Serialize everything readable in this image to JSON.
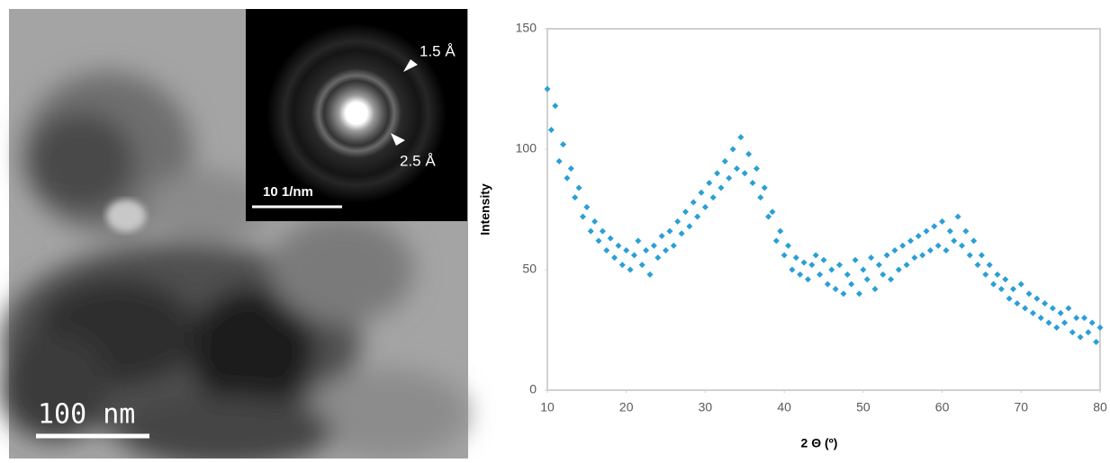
{
  "image_labels": {
    "scale_bar": "100 nm",
    "inset_scale_bar": "10 1/nm",
    "ring_outer": "1.5 Å",
    "ring_inner": "2.5 Å"
  },
  "chart_data": {
    "type": "scatter",
    "x_label": "2 Θ (º)",
    "y_label": "Intensity",
    "color": "#2a9fd6",
    "xlim": [
      10,
      80
    ],
    "xticks": [
      10,
      20,
      30,
      40,
      50,
      60,
      70,
      80
    ],
    "ylim": [
      0,
      150
    ],
    "yticks": [
      0,
      50,
      100,
      150
    ],
    "x": [
      10,
      10.5,
      11,
      11.5,
      12,
      12.5,
      13,
      13.5,
      14,
      14.5,
      15,
      15.5,
      16,
      16.5,
      17,
      17.5,
      18,
      18.5,
      19,
      19.5,
      20,
      20.5,
      21,
      21.5,
      22,
      22.5,
      23,
      23.5,
      24,
      24.5,
      25,
      25.5,
      26,
      26.5,
      27,
      27.5,
      28,
      28.5,
      29,
      29.5,
      30,
      30.5,
      31,
      31.5,
      32,
      32.5,
      33,
      33.5,
      34,
      34.5,
      35,
      35.5,
      36,
      36.5,
      37,
      37.5,
      38,
      38.5,
      39,
      39.5,
      40,
      40.5,
      41,
      41.5,
      42,
      42.5,
      43,
      43.5,
      44,
      44.5,
      45,
      45.5,
      46,
      46.5,
      47,
      47.5,
      48,
      48.5,
      49,
      49.5,
      50,
      50.5,
      51,
      51.5,
      52,
      52.5,
      53,
      53.5,
      54,
      54.5,
      55,
      55.5,
      56,
      56.5,
      57,
      57.5,
      58,
      58.5,
      59,
      59.5,
      60,
      60.5,
      61,
      61.5,
      62,
      62.5,
      63,
      63.5,
      64,
      64.5,
      65,
      65.5,
      66,
      66.5,
      67,
      67.5,
      68,
      68.5,
      69,
      69.5,
      70,
      70.5,
      71,
      71.5,
      72,
      72.5,
      73,
      73.5,
      74,
      74.5,
      75,
      75.5,
      76,
      76.5,
      77,
      77.5,
      78,
      78.5,
      79,
      79.5,
      80
    ],
    "values": [
      125,
      108,
      118,
      95,
      102,
      88,
      92,
      80,
      84,
      72,
      76,
      66,
      70,
      62,
      66,
      58,
      63,
      55,
      60,
      52,
      58,
      50,
      56,
      62,
      52,
      58,
      48,
      60,
      55,
      64,
      58,
      66,
      60,
      70,
      65,
      74,
      68,
      78,
      72,
      82,
      76,
      86,
      80,
      90,
      84,
      95,
      88,
      100,
      92,
      105,
      90,
      98,
      86,
      92,
      80,
      84,
      72,
      74,
      62,
      66,
      56,
      60,
      50,
      55,
      48,
      53,
      46,
      52,
      56,
      48,
      54,
      44,
      50,
      42,
      52,
      40,
      48,
      44,
      54,
      40,
      50,
      46,
      55,
      42,
      52,
      48,
      56,
      46,
      58,
      50,
      60,
      52,
      62,
      55,
      64,
      56,
      66,
      58,
      68,
      60,
      70,
      58,
      66,
      62,
      72,
      60,
      66,
      56,
      62,
      52,
      56,
      48,
      52,
      44,
      48,
      42,
      46,
      38,
      42,
      36,
      44,
      34,
      40,
      32,
      38,
      30,
      36,
      28,
      34,
      26,
      32,
      28,
      34,
      24,
      30,
      22,
      30,
      24,
      28,
      20,
      26
    ]
  }
}
